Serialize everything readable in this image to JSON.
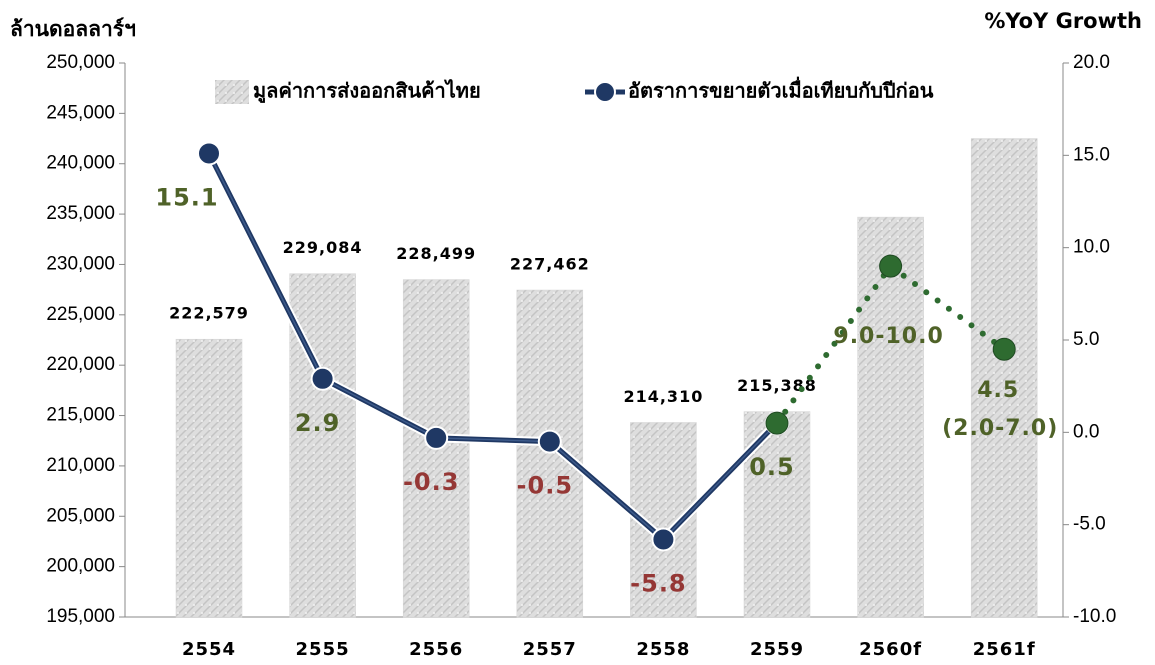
{
  "chart_data": {
    "type": "bar_line",
    "y_label": "ล้านดอลลาร์ฯ",
    "y2_label": "%YoY Growth",
    "categories": [
      "2554",
      "2555",
      "2556",
      "2557",
      "2558",
      "2559",
      "2560f",
      "2561f"
    ],
    "series": [
      {
        "name": "มูลค่าการส่งออกสินค้าไทย",
        "type": "bar",
        "color": "#d4d4d4",
        "values": [
          222579,
          229084,
          228499,
          227462,
          214310,
          215388,
          234700,
          242500
        ],
        "value_labels": [
          "222,579",
          "229,084",
          "228,499",
          "227,462",
          "214,310",
          "215,388",
          null,
          null
        ]
      },
      {
        "name": "อัตราการขยายตัวเมื่อเทียบกับปีก่อน",
        "type": "line",
        "axis": "y2",
        "color": "#1f3864",
        "values": [
          15.1,
          2.9,
          -0.3,
          -0.5,
          -5.8,
          0.5,
          null,
          null
        ]
      },
      {
        "type": "line",
        "axis": "y2",
        "color": "#2e6b30",
        "line_style": "dotted",
        "values": [
          null,
          null,
          null,
          null,
          null,
          0.5,
          9.0,
          4.5
        ],
        "value_labels": [
          null,
          null,
          null,
          null,
          null,
          null,
          "9.0-10.0",
          "4.5"
        ]
      }
    ],
    "annotations": [
      {
        "text": "(2.0-7.0)"
      }
    ],
    "positive_label_color": "#4f6228",
    "negative_label_color": "#953735",
    "ylim": [
      195000,
      250000
    ],
    "yticks": [
      {
        "value": 195000,
        "label": "195,000"
      },
      {
        "value": 200000,
        "label": "200,000"
      },
      {
        "value": 205000,
        "label": "205,000"
      },
      {
        "value": 210000,
        "label": "210,000"
      },
      {
        "value": 215000,
        "label": "215,000"
      },
      {
        "value": 220000,
        "label": "220,000"
      },
      {
        "value": 225000,
        "label": "225,000"
      },
      {
        "value": 230000,
        "label": "230,000"
      },
      {
        "value": 235000,
        "label": "235,000"
      },
      {
        "value": 240000,
        "label": "240,000"
      },
      {
        "value": 245000,
        "label": "245,000"
      },
      {
        "value": 250000,
        "label": "250,000"
      }
    ],
    "y2lim": [
      -10,
      20
    ],
    "y2ticks": [
      {
        "value": -10,
        "label": "-10.0"
      },
      {
        "value": -5,
        "label": "-5.0"
      },
      {
        "value": 0,
        "label": "0.0"
      },
      {
        "value": 5,
        "label": "5.0"
      },
      {
        "value": 10,
        "label": "10.0"
      },
      {
        "value": 15,
        "label": "15.0"
      },
      {
        "value": 20,
        "label": "20.0"
      }
    ]
  }
}
